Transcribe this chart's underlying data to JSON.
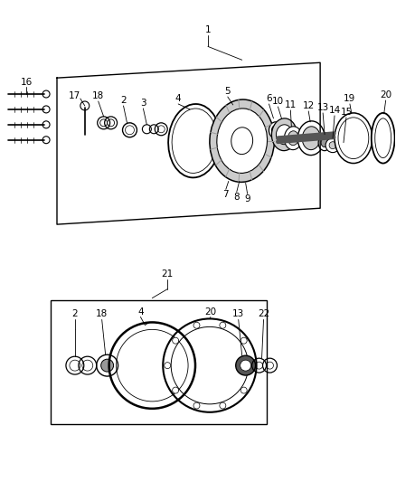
{
  "bg_color": "#ffffff",
  "line_color": "#000000",
  "gray_mid": "#999999",
  "gray_light": "#cccccc",
  "gray_dark": "#555555",
  "figsize": [
    4.38,
    5.33
  ],
  "dpi": 100
}
